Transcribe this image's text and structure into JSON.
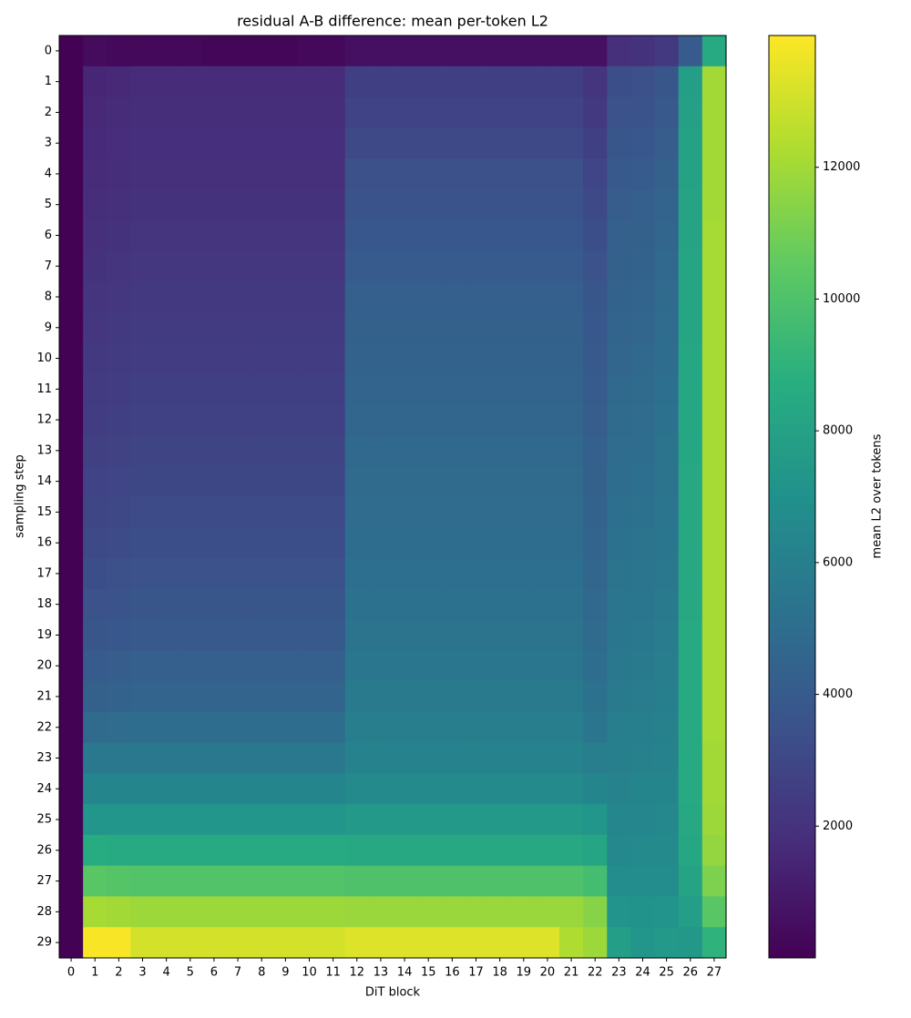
{
  "chart_data": {
    "type": "heatmap",
    "title": "residual A-B difference: mean per-token L2",
    "x_label": "DiT block",
    "y_label": "sampling step",
    "categories": [
      0,
      1,
      2,
      3,
      4,
      5,
      6,
      7,
      8,
      9,
      10,
      11,
      12,
      13,
      14,
      15,
      16,
      17,
      18,
      19,
      20,
      21,
      22,
      23,
      24,
      25,
      26,
      27
    ],
    "y_categories": [
      0,
      1,
      2,
      3,
      4,
      5,
      6,
      7,
      8,
      9,
      10,
      11,
      12,
      13,
      14,
      15,
      16,
      17,
      18,
      19,
      20,
      21,
      22,
      23,
      24,
      25,
      26,
      27,
      28,
      29
    ],
    "colormap": "viridis",
    "clim": [
      0,
      14000
    ],
    "colorbar_label": "mean L2 over tokens",
    "colorbar_ticks": [
      2000,
      4000,
      6000,
      8000,
      10000,
      12000
    ],
    "values": [
      [
        50,
        400,
        300,
        300,
        300,
        300,
        200,
        200,
        200,
        200,
        300,
        300,
        600,
        600,
        600,
        600,
        600,
        600,
        600,
        600,
        600,
        600,
        600,
        1900,
        2000,
        2300,
        4000,
        8500
      ],
      [
        50,
        1500,
        1600,
        1700,
        1700,
        1700,
        1700,
        1700,
        1700,
        1700,
        1700,
        1700,
        2600,
        2600,
        2600,
        2600,
        2600,
        2600,
        2600,
        2600,
        2600,
        2600,
        2100,
        3300,
        3400,
        3700,
        7800,
        12000
      ],
      [
        50,
        1600,
        1700,
        1800,
        1800,
        1800,
        1800,
        1800,
        1800,
        1800,
        1800,
        1800,
        2800,
        2800,
        2800,
        2800,
        2800,
        2800,
        2800,
        2800,
        2800,
        2800,
        2300,
        3500,
        3600,
        3900,
        7900,
        12000
      ],
      [
        50,
        1650,
        1750,
        1850,
        1850,
        1850,
        1850,
        1850,
        1850,
        1850,
        1850,
        1850,
        3100,
        3100,
        3100,
        3100,
        3100,
        3100,
        3100,
        3100,
        3100,
        3100,
        2600,
        3700,
        3800,
        4100,
        8000,
        12000
      ],
      [
        50,
        1700,
        1800,
        1900,
        1900,
        1900,
        1900,
        1900,
        1900,
        1900,
        1900,
        1900,
        3400,
        3400,
        3400,
        3400,
        3400,
        3400,
        3400,
        3400,
        3400,
        3400,
        2900,
        3900,
        4000,
        4300,
        8000,
        12000
      ],
      [
        50,
        1800,
        1900,
        2000,
        2000,
        2000,
        2000,
        2000,
        2000,
        2000,
        2000,
        2000,
        3600,
        3600,
        3600,
        3600,
        3600,
        3600,
        3600,
        3600,
        3600,
        3600,
        3100,
        4100,
        4200,
        4500,
        8100,
        12000
      ],
      [
        50,
        1900,
        2000,
        2100,
        2100,
        2100,
        2100,
        2100,
        2100,
        2100,
        2100,
        2100,
        3800,
        3800,
        3800,
        3800,
        3800,
        3800,
        3800,
        3800,
        3800,
        3800,
        3300,
        4200,
        4300,
        4600,
        8100,
        12100
      ],
      [
        50,
        2000,
        2100,
        2200,
        2200,
        2200,
        2200,
        2200,
        2200,
        2200,
        2200,
        2200,
        4000,
        4000,
        4000,
        4000,
        4000,
        4000,
        4000,
        4000,
        4000,
        4000,
        3500,
        4300,
        4400,
        4700,
        8200,
        12100
      ],
      [
        50,
        2100,
        2200,
        2300,
        2300,
        2300,
        2300,
        2300,
        2300,
        2300,
        2300,
        2300,
        4200,
        4200,
        4200,
        4200,
        4200,
        4200,
        4200,
        4200,
        4200,
        4200,
        3700,
        4400,
        4500,
        4800,
        8200,
        12100
      ],
      [
        50,
        2200,
        2300,
        2400,
        2400,
        2400,
        2400,
        2400,
        2400,
        2400,
        2400,
        2400,
        4300,
        4300,
        4300,
        4300,
        4300,
        4300,
        4300,
        4300,
        4300,
        4300,
        3800,
        4500,
        4600,
        4900,
        8200,
        12100
      ],
      [
        50,
        2300,
        2400,
        2500,
        2500,
        2500,
        2500,
        2500,
        2500,
        2500,
        2500,
        2500,
        4400,
        4400,
        4400,
        4400,
        4400,
        4400,
        4400,
        4400,
        4400,
        4400,
        3900,
        4600,
        4700,
        5000,
        8300,
        12100
      ],
      [
        50,
        2400,
        2500,
        2600,
        2600,
        2600,
        2600,
        2600,
        2600,
        2600,
        2600,
        2600,
        4500,
        4500,
        4500,
        4500,
        4500,
        4500,
        4500,
        4500,
        4500,
        4500,
        4000,
        4700,
        4800,
        5100,
        8300,
        12100
      ],
      [
        50,
        2500,
        2600,
        2700,
        2700,
        2700,
        2700,
        2700,
        2700,
        2700,
        2700,
        2700,
        4600,
        4600,
        4600,
        4600,
        4600,
        4600,
        4600,
        4600,
        4600,
        4600,
        4100,
        4800,
        4900,
        5200,
        8300,
        12100
      ],
      [
        50,
        2650,
        2750,
        2850,
        2850,
        2850,
        2850,
        2850,
        2850,
        2850,
        2850,
        2850,
        4700,
        4700,
        4700,
        4700,
        4700,
        4700,
        4700,
        4700,
        4700,
        4700,
        4200,
        4900,
        5000,
        5300,
        8300,
        12100
      ],
      [
        50,
        2800,
        2900,
        3000,
        3000,
        3000,
        3000,
        3000,
        3000,
        3000,
        3000,
        3000,
        4800,
        4800,
        4800,
        4800,
        4800,
        4800,
        4800,
        4800,
        4800,
        4800,
        4300,
        5000,
        5100,
        5300,
        8400,
        12100
      ],
      [
        50,
        2950,
        3050,
        3150,
        3150,
        3150,
        3150,
        3150,
        3150,
        3150,
        3150,
        3150,
        4900,
        4900,
        4900,
        4900,
        4900,
        4900,
        4900,
        4900,
        4900,
        4900,
        4400,
        5100,
        5200,
        5400,
        8400,
        12100
      ],
      [
        50,
        3100,
        3200,
        3300,
        3300,
        3300,
        3300,
        3300,
        3300,
        3300,
        3300,
        3300,
        5000,
        5000,
        5000,
        5000,
        5000,
        5000,
        5000,
        5000,
        5000,
        5000,
        4500,
        5200,
        5300,
        5500,
        8400,
        12100
      ],
      [
        50,
        3300,
        3400,
        3500,
        3500,
        3500,
        3500,
        3500,
        3500,
        3500,
        3500,
        3500,
        5100,
        5100,
        5100,
        5100,
        5100,
        5100,
        5100,
        5100,
        5100,
        5100,
        4600,
        5300,
        5400,
        5600,
        8400,
        12100
      ],
      [
        50,
        3500,
        3600,
        3700,
        3700,
        3700,
        3700,
        3700,
        3700,
        3700,
        3700,
        3700,
        5200,
        5200,
        5200,
        5200,
        5200,
        5200,
        5200,
        5200,
        5200,
        5200,
        4700,
        5400,
        5500,
        5700,
        8400,
        12100
      ],
      [
        50,
        3700,
        3800,
        3900,
        3900,
        3900,
        3900,
        3900,
        3900,
        3900,
        3900,
        3900,
        5300,
        5300,
        5300,
        5300,
        5300,
        5300,
        5300,
        5300,
        5300,
        5300,
        4800,
        5500,
        5600,
        5800,
        8500,
        12100
      ],
      [
        50,
        4000,
        4100,
        4200,
        4200,
        4200,
        4200,
        4200,
        4200,
        4200,
        4200,
        4200,
        5500,
        5500,
        5500,
        5500,
        5500,
        5500,
        5500,
        5500,
        5500,
        5500,
        5000,
        5600,
        5700,
        5900,
        8500,
        12100
      ],
      [
        50,
        4300,
        4400,
        4500,
        4500,
        4500,
        4500,
        4500,
        4500,
        4500,
        4500,
        4500,
        5700,
        5700,
        5700,
        5700,
        5700,
        5700,
        5700,
        5700,
        5700,
        5700,
        5200,
        5700,
        5800,
        6000,
        8500,
        12100
      ],
      [
        50,
        4800,
        4900,
        5000,
        5000,
        5000,
        5000,
        5000,
        5000,
        5000,
        5000,
        5000,
        5900,
        5900,
        5900,
        5900,
        5900,
        5900,
        5900,
        5900,
        5900,
        5900,
        5400,
        5900,
        6000,
        6100,
        8500,
        12100
      ],
      [
        50,
        5600,
        5600,
        5600,
        5600,
        5600,
        5600,
        5600,
        5600,
        5600,
        5600,
        5600,
        6200,
        6200,
        6200,
        6200,
        6200,
        6200,
        6200,
        6200,
        6200,
        6200,
        5900,
        6000,
        6100,
        6200,
        8500,
        12000
      ],
      [
        50,
        6300,
        6300,
        6300,
        6300,
        6300,
        6300,
        6300,
        6300,
        6300,
        6300,
        6300,
        6600,
        6600,
        6600,
        6600,
        6600,
        6600,
        6600,
        6600,
        6600,
        6600,
        6300,
        6200,
        6300,
        6300,
        8500,
        12000
      ],
      [
        50,
        7300,
        7300,
        7300,
        7300,
        7300,
        7300,
        7300,
        7300,
        7300,
        7300,
        7300,
        7500,
        7500,
        7500,
        7500,
        7500,
        7500,
        7500,
        7500,
        7500,
        7500,
        7300,
        6400,
        6400,
        6500,
        8400,
        11900
      ],
      [
        50,
        8600,
        8500,
        8500,
        8500,
        8500,
        8500,
        8500,
        8500,
        8500,
        8500,
        8500,
        8400,
        8400,
        8400,
        8400,
        8400,
        8400,
        8400,
        8400,
        8400,
        8400,
        8200,
        6500,
        6600,
        6600,
        8300,
        11700
      ],
      [
        50,
        10300,
        10200,
        10100,
        10100,
        10100,
        10100,
        10100,
        10100,
        10100,
        10100,
        10100,
        10000,
        10000,
        10000,
        10000,
        10000,
        10000,
        10000,
        10000,
        10000,
        10000,
        9700,
        6700,
        6800,
        6800,
        8100,
        11200
      ],
      [
        50,
        12100,
        12000,
        11900,
        11900,
        11900,
        11900,
        11900,
        11900,
        11900,
        11900,
        11900,
        11800,
        11800,
        11800,
        11800,
        11800,
        11800,
        11800,
        11800,
        11800,
        11800,
        11400,
        7200,
        7100,
        7200,
        7800,
        10300
      ],
      [
        50,
        13900,
        13900,
        13100,
        13100,
        13100,
        13100,
        13100,
        13100,
        13100,
        13100,
        13100,
        13300,
        13300,
        13300,
        13300,
        13300,
        13300,
        13300,
        13300,
        13300,
        12300,
        11900,
        7800,
        7300,
        7500,
        7400,
        9000
      ]
    ]
  }
}
